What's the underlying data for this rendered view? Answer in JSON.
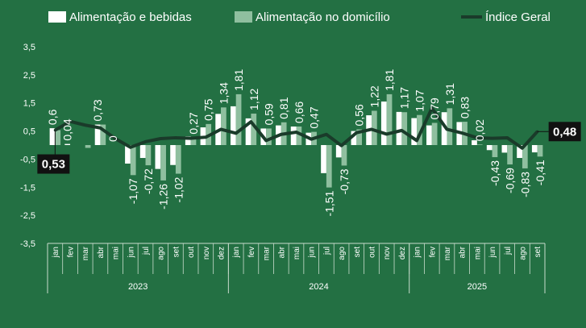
{
  "chart_data": {
    "type": "bar",
    "colors": {
      "background": "#237043",
      "series1": "#ffffff",
      "series2": "#8fbf9f",
      "series3": "#1a3b2a",
      "axis": "#c9dccd",
      "callout_bg": "#111111"
    },
    "ylim": [
      -3.5,
      3.5
    ],
    "yticks": [
      3.5,
      2.5,
      1.5,
      0.5,
      -0.5,
      -1.5,
      -2.5,
      -3.5
    ],
    "ytick_labels": [
      "3,5",
      "2,5",
      "1,5",
      "0,5",
      "-0,5",
      "-1,5",
      "-2,5",
      "-3,5"
    ],
    "categories": [
      "jan",
      "fev",
      "mar",
      "abr",
      "mai",
      "jun",
      "jul",
      "ago",
      "set",
      "out",
      "nov",
      "dez",
      "jan",
      "fev",
      "mar",
      "abr",
      "mai",
      "jun",
      "jul",
      "ago",
      "set",
      "out",
      "nov",
      "dez",
      "jan",
      "fev",
      "mar",
      "abr",
      "mai",
      "jun",
      "jul",
      "ago",
      "set"
    ],
    "years": [
      {
        "label": "2023",
        "start": 0,
        "count": 12
      },
      {
        "label": "2024",
        "start": 12,
        "count": 12
      },
      {
        "label": "2025",
        "start": 24,
        "count": 9
      }
    ],
    "series": [
      {
        "name": "Alimentação e bebidas",
        "kind": "bar",
        "values": [
          0.6,
          0.04,
          0.0,
          0.73,
          0.0,
          -0.66,
          -0.46,
          -0.85,
          -0.71,
          0.31,
          0.63,
          1.11,
          1.38,
          0.95,
          0.59,
          0.7,
          0.66,
          0.44,
          -1.0,
          -0.44,
          0.5,
          1.06,
          1.55,
          1.18,
          0.96,
          0.7,
          1.17,
          0.82,
          0.17,
          -0.18,
          -0.27,
          -0.46,
          -0.26
        ],
        "labels": [
          "0,6",
          "0,04",
          "",
          "0,73",
          "0",
          "",
          "",
          "",
          "",
          "",
          "",
          "",
          "",
          "",
          "",
          "",
          "",
          "",
          "",
          "",
          "",
          "",
          "",
          "",
          "",
          "",
          "",
          "",
          "",
          "",
          "",
          "",
          ""
        ]
      },
      {
        "name": "Alimentação no domicílio",
        "kind": "bar",
        "values": [
          0.53,
          0.0,
          -0.1,
          0.73,
          0.0,
          -1.07,
          -0.72,
          -1.26,
          -1.02,
          0.27,
          0.75,
          1.34,
          1.81,
          1.12,
          0.59,
          0.81,
          0.66,
          0.47,
          -1.51,
          -0.73,
          0.56,
          1.22,
          1.81,
          1.17,
          1.07,
          0.79,
          1.31,
          0.83,
          0.02,
          -0.43,
          -0.69,
          -0.83,
          -0.41
        ],
        "labels": [
          "",
          "",
          "",
          "",
          "",
          "-1,07",
          "-0,72",
          "-1,26",
          "-1,02",
          "0,27",
          "0,75",
          "1,34",
          "1,81",
          "1,12",
          "0,59",
          "0,81",
          "0,66",
          "0,47",
          "-1,51",
          "-0,73",
          "0,56",
          "1,22",
          "1,81",
          "1,17",
          "1,07",
          "0,79",
          "1,31",
          "0,83",
          "0,02",
          "-0,43",
          "-0,69",
          "-0,83",
          "-0,41"
        ]
      },
      {
        "name": "Índice Geral",
        "kind": "line",
        "values": [
          0.53,
          0.84,
          0.71,
          0.61,
          0.23,
          -0.08,
          0.12,
          0.23,
          0.26,
          0.24,
          0.28,
          0.56,
          0.42,
          0.83,
          0.16,
          0.38,
          0.46,
          0.21,
          0.38,
          -0.02,
          0.44,
          0.56,
          0.39,
          0.52,
          0.16,
          1.31,
          0.56,
          0.43,
          0.26,
          0.24,
          0.26,
          -0.11,
          0.48
        ]
      }
    ],
    "callouts": [
      {
        "series": 2,
        "index": 0,
        "text": "0,53",
        "position": "below"
      },
      {
        "series": 2,
        "index": 32,
        "text": "0,48",
        "position": "right"
      }
    ]
  }
}
